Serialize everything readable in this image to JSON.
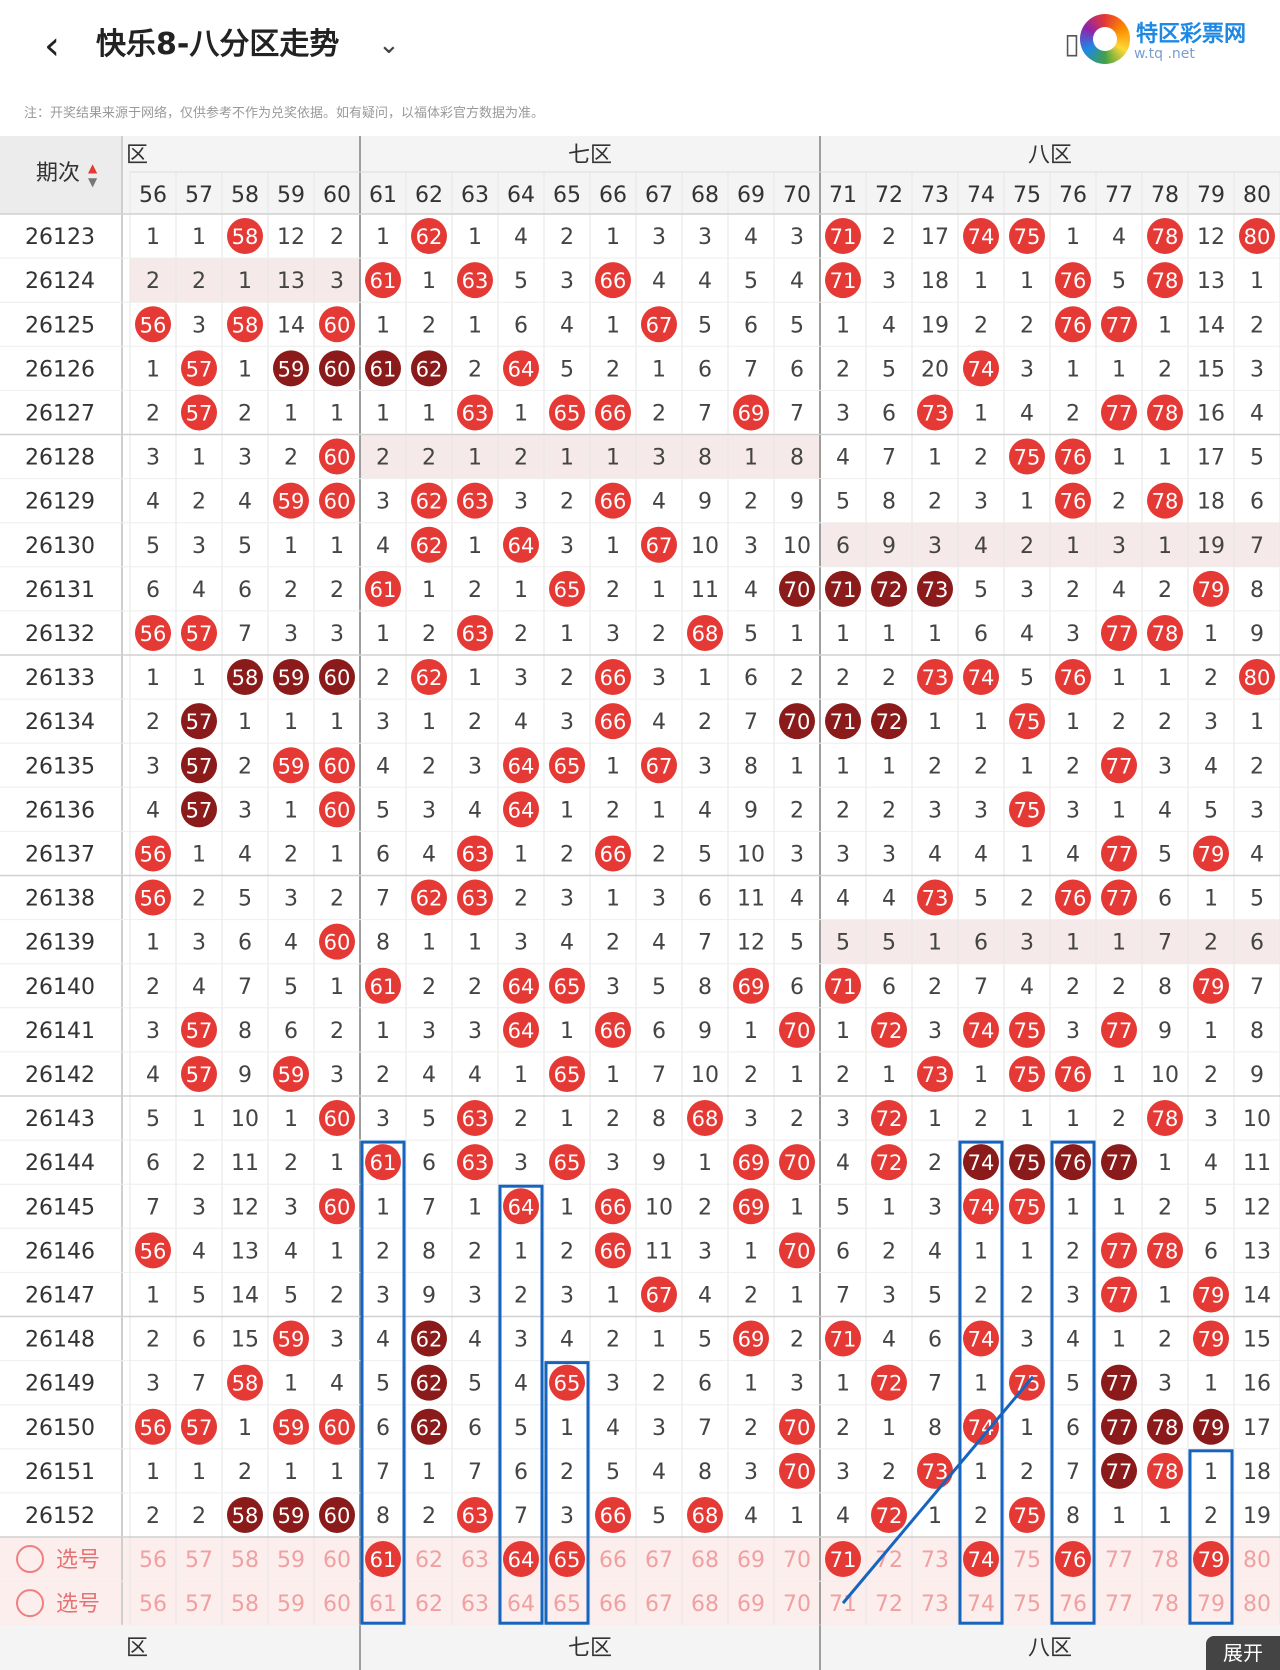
{
  "header": {
    "back_icon": "back-arrow-icon",
    "title": "快乐8-八分区走势",
    "title_caret_icon": "chevron-down-icon",
    "logo_text": "特区彩票网",
    "logo_url": "w.tq   .net",
    "icons": [
      "layout-icon",
      "help-icon",
      "settings-icon"
    ]
  },
  "notice": "注：开奖结果来源于网络，仅供参考不作为兑奖依据。如有疑问，以福体彩官方数据为准。",
  "table": {
    "period_label": "期次",
    "sort_icon": "sort-arrows-icon",
    "zones": [
      {
        "label": "六区",
        "visible_text": "区"
      },
      {
        "label": "七区"
      },
      {
        "label": "八区"
      }
    ],
    "columns": [
      56,
      57,
      58,
      59,
      60,
      61,
      62,
      63,
      64,
      65,
      66,
      67,
      68,
      69,
      70,
      71,
      72,
      73,
      74,
      75,
      76,
      77,
      78,
      79,
      80
    ],
    "rows": [
      {
        "p": "26123",
        "v": [
          "1",
          "1",
          "58",
          "12",
          "2",
          "1",
          "62",
          "1",
          "4",
          "2",
          "1",
          "3",
          "3",
          "4",
          "3",
          "71",
          "2",
          "17",
          "74",
          "75",
          "1",
          "4",
          "78",
          "12",
          "80"
        ]
      },
      {
        "p": "26124",
        "v": [
          "2",
          "2",
          "1",
          "13",
          "3",
          "61",
          "1",
          "63",
          "5",
          "3",
          "66",
          "4",
          "4",
          "5",
          "4",
          "71",
          "3",
          "18",
          "1",
          "1",
          "76",
          "5",
          "78",
          "13",
          "1"
        ]
      },
      {
        "p": "26125",
        "v": [
          "56",
          "3",
          "58",
          "14",
          "60",
          "1",
          "2",
          "1",
          "6",
          "4",
          "1",
          "67",
          "5",
          "6",
          "5",
          "1",
          "4",
          "19",
          "2",
          "2",
          "76",
          "77",
          "1",
          "14",
          "2"
        ]
      },
      {
        "p": "26126",
        "v": [
          "1",
          "57",
          "1",
          "59",
          "60",
          "61",
          "62",
          "2",
          "64",
          "5",
          "2",
          "1",
          "6",
          "7",
          "6",
          "2",
          "5",
          "20",
          "74",
          "3",
          "1",
          "1",
          "2",
          "15",
          "3"
        ]
      },
      {
        "p": "26127",
        "v": [
          "2",
          "57",
          "2",
          "1",
          "1",
          "1",
          "1",
          "63",
          "1",
          "65",
          "66",
          "2",
          "7",
          "69",
          "7",
          "3",
          "6",
          "73",
          "1",
          "4",
          "2",
          "77",
          "78",
          "16",
          "4"
        ]
      },
      {
        "p": "26128",
        "v": [
          "3",
          "1",
          "3",
          "2",
          "60",
          "2",
          "2",
          "1",
          "2",
          "1",
          "1",
          "3",
          "8",
          "1",
          "8",
          "4",
          "7",
          "1",
          "2",
          "75",
          "76",
          "1",
          "1",
          "17",
          "5"
        ]
      },
      {
        "p": "26129",
        "v": [
          "4",
          "2",
          "4",
          "59",
          "60",
          "3",
          "62",
          "63",
          "3",
          "2",
          "66",
          "4",
          "9",
          "2",
          "9",
          "5",
          "8",
          "2",
          "3",
          "1",
          "76",
          "2",
          "78",
          "18",
          "6"
        ]
      },
      {
        "p": "26130",
        "v": [
          "5",
          "3",
          "5",
          "1",
          "1",
          "4",
          "62",
          "1",
          "64",
          "3",
          "1",
          "67",
          "10",
          "3",
          "10",
          "6",
          "9",
          "3",
          "4",
          "2",
          "1",
          "3",
          "1",
          "19",
          "7"
        ]
      },
      {
        "p": "26131",
        "v": [
          "6",
          "4",
          "6",
          "2",
          "2",
          "61",
          "1",
          "2",
          "1",
          "65",
          "2",
          "1",
          "11",
          "4",
          "70",
          "71",
          "72",
          "73",
          "5",
          "3",
          "2",
          "4",
          "2",
          "79",
          "8"
        ]
      },
      {
        "p": "26132",
        "v": [
          "56",
          "57",
          "7",
          "3",
          "3",
          "1",
          "2",
          "63",
          "2",
          "1",
          "3",
          "2",
          "68",
          "5",
          "1",
          "1",
          "1",
          "1",
          "6",
          "4",
          "3",
          "77",
          "78",
          "1",
          "9"
        ]
      },
      {
        "p": "26133",
        "v": [
          "1",
          "1",
          "58",
          "59",
          "60",
          "2",
          "62",
          "1",
          "3",
          "2",
          "66",
          "3",
          "1",
          "6",
          "2",
          "2",
          "2",
          "73",
          "74",
          "5",
          "76",
          "1",
          "1",
          "2",
          "80"
        ]
      },
      {
        "p": "26134",
        "v": [
          "2",
          "57",
          "1",
          "1",
          "1",
          "3",
          "1",
          "2",
          "4",
          "3",
          "66",
          "4",
          "2",
          "7",
          "70",
          "71",
          "72",
          "1",
          "1",
          "75",
          "1",
          "2",
          "2",
          "3",
          "1"
        ]
      },
      {
        "p": "26135",
        "v": [
          "3",
          "57",
          "2",
          "59",
          "60",
          "4",
          "2",
          "3",
          "64",
          "65",
          "1",
          "67",
          "3",
          "8",
          "1",
          "1",
          "1",
          "2",
          "2",
          "1",
          "2",
          "77",
          "3",
          "4",
          "2"
        ]
      },
      {
        "p": "26136",
        "v": [
          "4",
          "57",
          "3",
          "1",
          "60",
          "5",
          "3",
          "4",
          "64",
          "1",
          "2",
          "1",
          "4",
          "9",
          "2",
          "2",
          "2",
          "3",
          "3",
          "75",
          "3",
          "1",
          "4",
          "5",
          "3"
        ]
      },
      {
        "p": "26137",
        "v": [
          "56",
          "1",
          "4",
          "2",
          "1",
          "6",
          "4",
          "63",
          "1",
          "2",
          "66",
          "2",
          "5",
          "10",
          "3",
          "3",
          "3",
          "4",
          "4",
          "1",
          "4",
          "77",
          "5",
          "79",
          "4"
        ]
      },
      {
        "p": "26138",
        "v": [
          "56",
          "2",
          "5",
          "3",
          "2",
          "7",
          "62",
          "63",
          "2",
          "3",
          "1",
          "3",
          "6",
          "11",
          "4",
          "4",
          "4",
          "73",
          "5",
          "2",
          "76",
          "77",
          "6",
          "1",
          "5"
        ]
      },
      {
        "p": "26139",
        "v": [
          "1",
          "3",
          "6",
          "4",
          "60",
          "8",
          "1",
          "1",
          "3",
          "4",
          "2",
          "4",
          "7",
          "12",
          "5",
          "5",
          "5",
          "1",
          "6",
          "3",
          "1",
          "1",
          "7",
          "2",
          "6"
        ]
      },
      {
        "p": "26140",
        "v": [
          "2",
          "4",
          "7",
          "5",
          "1",
          "61",
          "2",
          "2",
          "64",
          "65",
          "3",
          "5",
          "8",
          "69",
          "6",
          "71",
          "6",
          "2",
          "7",
          "4",
          "2",
          "2",
          "8",
          "79",
          "7"
        ]
      },
      {
        "p": "26141",
        "v": [
          "3",
          "57",
          "8",
          "6",
          "2",
          "1",
          "3",
          "3",
          "64",
          "1",
          "66",
          "6",
          "9",
          "1",
          "70",
          "1",
          "72",
          "3",
          "74",
          "75",
          "3",
          "77",
          "9",
          "1",
          "8"
        ]
      },
      {
        "p": "26142",
        "v": [
          "4",
          "57",
          "9",
          "59",
          "3",
          "2",
          "4",
          "4",
          "1",
          "65",
          "1",
          "7",
          "10",
          "2",
          "1",
          "2",
          "1",
          "73",
          "1",
          "75",
          "76",
          "1",
          "10",
          "2",
          "9"
        ]
      },
      {
        "p": "26143",
        "v": [
          "5",
          "1",
          "10",
          "1",
          "60",
          "3",
          "5",
          "63",
          "2",
          "1",
          "2",
          "8",
          "68",
          "3",
          "2",
          "3",
          "72",
          "1",
          "2",
          "1",
          "1",
          "2",
          "78",
          "3",
          "10"
        ]
      },
      {
        "p": "26144",
        "v": [
          "6",
          "2",
          "11",
          "2",
          "1",
          "61",
          "6",
          "63",
          "3",
          "65",
          "3",
          "9",
          "1",
          "69",
          "70",
          "4",
          "72",
          "2",
          "74",
          "75",
          "76",
          "77",
          "1",
          "4",
          "11"
        ]
      },
      {
        "p": "26145",
        "v": [
          "7",
          "3",
          "12",
          "3",
          "60",
          "1",
          "7",
          "1",
          "64",
          "1",
          "66",
          "10",
          "2",
          "69",
          "1",
          "5",
          "1",
          "3",
          "74",
          "75",
          "1",
          "1",
          "2",
          "5",
          "12"
        ]
      },
      {
        "p": "26146",
        "v": [
          "56",
          "4",
          "13",
          "4",
          "1",
          "2",
          "8",
          "2",
          "1",
          "2",
          "66",
          "11",
          "3",
          "1",
          "70",
          "6",
          "2",
          "4",
          "1",
          "1",
          "2",
          "77",
          "78",
          "6",
          "13"
        ]
      },
      {
        "p": "26147",
        "v": [
          "1",
          "5",
          "14",
          "5",
          "2",
          "3",
          "9",
          "3",
          "2",
          "3",
          "1",
          "67",
          "4",
          "2",
          "1",
          "7",
          "3",
          "5",
          "2",
          "2",
          "3",
          "77",
          "1",
          "79",
          "14"
        ]
      },
      {
        "p": "26148",
        "v": [
          "2",
          "6",
          "15",
          "59",
          "3",
          "4",
          "62",
          "4",
          "3",
          "4",
          "2",
          "1",
          "5",
          "69",
          "2",
          "71",
          "4",
          "6",
          "74",
          "3",
          "4",
          "1",
          "2",
          "79",
          "15"
        ]
      },
      {
        "p": "26149",
        "v": [
          "3",
          "7",
          "58",
          "1",
          "4",
          "5",
          "62",
          "5",
          "4",
          "65",
          "3",
          "2",
          "6",
          "1",
          "3",
          "1",
          "72",
          "7",
          "1",
          "75",
          "5",
          "77",
          "3",
          "1",
          "16"
        ]
      },
      {
        "p": "26150",
        "v": [
          "56",
          "57",
          "1",
          "59",
          "60",
          "6",
          "62",
          "6",
          "5",
          "1",
          "4",
          "3",
          "7",
          "2",
          "70",
          "2",
          "1",
          "8",
          "74",
          "1",
          "6",
          "77",
          "78",
          "79",
          "17"
        ]
      },
      {
        "p": "26151",
        "v": [
          "1",
          "1",
          "2",
          "1",
          "1",
          "7",
          "1",
          "7",
          "6",
          "2",
          "5",
          "4",
          "8",
          "3",
          "70",
          "3",
          "2",
          "73",
          "1",
          "2",
          "7",
          "77",
          "78",
          "1",
          "18"
        ]
      },
      {
        "p": "26152",
        "v": [
          "2",
          "2",
          "58",
          "59",
          "60",
          "8",
          "2",
          "63",
          "7",
          "3",
          "66",
          "5",
          "68",
          "4",
          "1",
          "4",
          "72",
          "1",
          "2",
          "75",
          "8",
          "1",
          "1",
          "2",
          "19"
        ]
      }
    ],
    "dark_balls": {
      "26126": [
        "59",
        "60",
        "61",
        "62"
      ],
      "26131": [
        "70",
        "71",
        "72",
        "73"
      ],
      "26133": [
        "58",
        "59",
        "60"
      ],
      "26134": [
        "57",
        "70",
        "71",
        "72"
      ],
      "26135": [
        "57"
      ],
      "26136": [
        "57"
      ],
      "26144": [
        "74",
        "75",
        "76",
        "77"
      ],
      "26148": [
        "62"
      ],
      "26149": [
        "62",
        "77"
      ],
      "26150": [
        "62",
        "77",
        "78",
        "79"
      ],
      "26151": [
        "77"
      ],
      "26152": [
        "58",
        "59",
        "60"
      ]
    },
    "shaded_rows": {
      "26124": [
        56,
        60
      ],
      "26128": [
        61,
        70
      ],
      "26130": [
        71,
        80
      ],
      "26139": [
        71,
        80
      ]
    },
    "select_rows": [
      {
        "label": "选号",
        "selected": [
          "61",
          "64",
          "65",
          "71",
          "74",
          "76",
          "79"
        ]
      },
      {
        "label": "选号",
        "selected": []
      }
    ],
    "bottom_zones": [
      "区",
      "七区",
      "八区"
    ]
  },
  "colors": {
    "ball_red": "#e53935",
    "ball_dark": "#8b1a1a",
    "annotation_blue": "#1565c0",
    "grid_line": "#e6e6e6",
    "zone_divider": "#9e9e9e",
    "select_text": "#f0a0a0"
  },
  "expand_button": "展开"
}
